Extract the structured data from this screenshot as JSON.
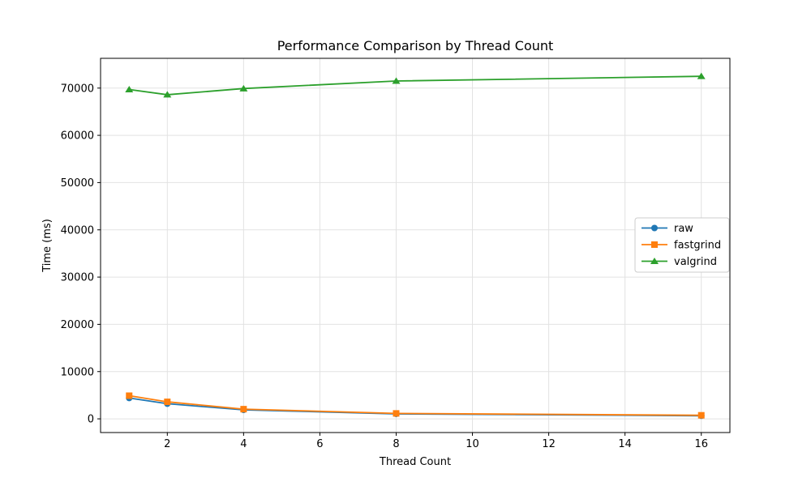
{
  "chart_data": {
    "type": "line",
    "title": "Performance Comparison by Thread Count",
    "xlabel": "Thread Count",
    "ylabel": "Time (ms)",
    "x": [
      1,
      2,
      4,
      8,
      16
    ],
    "series": [
      {
        "name": "raw",
        "color": "#1f77b4",
        "marker": "circle",
        "values": [
          4400,
          3200,
          1900,
          1050,
          650
        ]
      },
      {
        "name": "fastgrind",
        "color": "#ff7f0e",
        "marker": "square",
        "values": [
          4900,
          3600,
          2050,
          1150,
          750
        ]
      },
      {
        "name": "valgrind",
        "color": "#2ca02c",
        "marker": "triangle",
        "values": [
          69700,
          68600,
          69900,
          71500,
          72500
        ]
      }
    ],
    "xticks": [
      2,
      4,
      6,
      8,
      10,
      12,
      14,
      16
    ],
    "yticks": [
      0,
      10000,
      20000,
      30000,
      40000,
      50000,
      60000,
      70000
    ],
    "xlim": [
      0.25,
      16.75
    ],
    "ylim": [
      -2900,
      76300
    ],
    "grid": true,
    "grid_color": "#e2e2e2",
    "background": "#ffffff",
    "spine_color": "#000000",
    "legend": {
      "position": "center right",
      "border_color": "#cccccc",
      "fill": "#ffffff"
    }
  }
}
